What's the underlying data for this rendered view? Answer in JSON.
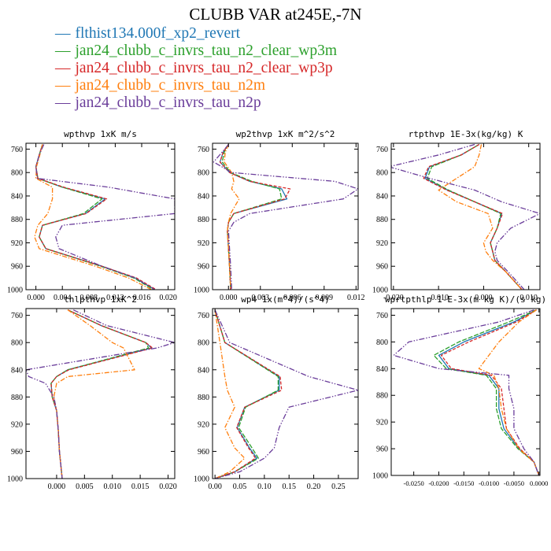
{
  "title": "CLUBB VAR at245E,-7N",
  "colors": {
    "flthist134.000f_xp2_revert": "#1f77b4",
    "jan24_clubb_c_invrs_tau_n2_clear_wp3m": "#2ca02c",
    "jan24_clubb_c_invrs_tau_n2_clear_wp3p": "#d62728",
    "jan24_clubb_c_invrs_tau_n2m": "#ff7f0e",
    "jan24_clubb_c_invrs_tau_n2p": "#6a3d9a"
  },
  "legend": [
    {
      "name": "flthist134.000f_xp2_revert",
      "color": "#1f77b4"
    },
    {
      "name": "jan24_clubb_c_invrs_tau_n2_clear_wp3m",
      "color": "#2ca02c"
    },
    {
      "name": "jan24_clubb_c_invrs_tau_n2_clear_wp3p",
      "color": "#d62728"
    },
    {
      "name": "jan24_clubb_c_invrs_tau_n2m",
      "color": "#ff7f0e"
    },
    {
      "name": "jan24_clubb_c_invrs_tau_n2p",
      "color": "#6a3d9a"
    }
  ],
  "chart_data": [
    {
      "type": "line",
      "title": "wpthvp  1xK m/s",
      "ylim": [
        1000,
        750
      ],
      "yticks": [
        760,
        800,
        840,
        880,
        920,
        960,
        1000
      ],
      "xlim": [
        -0.0015,
        0.021
      ],
      "xticks": [
        0.0,
        0.004,
        0.008,
        0.012,
        0.016,
        0.02
      ],
      "xtick_labels": [
        "0.000",
        "0.004",
        "0.008",
        "0.012",
        "0.016",
        "0.020"
      ],
      "grid": false,
      "levels": [
        752,
        770,
        790,
        810,
        825,
        845,
        870,
        890,
        910,
        930,
        960,
        980,
        1000
      ],
      "series": [
        {
          "name": "flthist134.000f_xp2_revert",
          "values": [
            0.001,
            0.0005,
            0.0,
            0.0003,
            0.004,
            0.0105,
            0.0075,
            0.001,
            0.0005,
            0.0015,
            0.01,
            0.015,
            0.018
          ]
        },
        {
          "name": "jan24_clubb_c_invrs_tau_n2_clear_wp3m",
          "values": [
            0.001,
            0.0005,
            0.0,
            0.0003,
            0.004,
            0.01,
            0.0072,
            0.001,
            0.0005,
            0.0015,
            0.0098,
            0.0148,
            0.0178
          ]
        },
        {
          "name": "jan24_clubb_c_invrs_tau_n2_clear_wp3p",
          "values": [
            0.001,
            0.0005,
            0.0,
            0.0003,
            0.0042,
            0.0107,
            0.0076,
            0.001,
            0.0005,
            0.0015,
            0.01,
            0.0152,
            0.0182
          ]
        },
        {
          "name": "jan24_clubb_c_invrs_tau_n2m",
          "values": [
            0.001,
            0.0006,
            0.0001,
            0.0,
            0.0025,
            0.0025,
            0.0018,
            0.0003,
            -0.0002,
            0.0005,
            0.009,
            0.014,
            0.0175
          ]
        },
        {
          "name": "jan24_clubb_c_invrs_tau_n2p",
          "values": [
            0.0012,
            0.0005,
            0.0,
            0.0002,
            0.011,
            0.021,
            0.021,
            0.004,
            0.003,
            0.0035,
            0.01,
            0.015,
            0.018
          ]
        }
      ]
    },
    {
      "type": "line",
      "title": "wp2thvp  1xK m^2/s^2",
      "ylim": [
        1000,
        750
      ],
      "yticks": [
        760,
        800,
        840,
        880,
        920,
        960,
        1000
      ],
      "xlim": [
        -0.0015,
        0.0122
      ],
      "xticks": [
        0.0,
        0.003,
        0.006,
        0.009,
        0.012
      ],
      "xtick_labels": [
        "0.000",
        "0.003",
        "0.006",
        "0.009",
        "0.012"
      ],
      "grid": false,
      "levels": [
        752,
        765,
        782,
        800,
        815,
        828,
        845,
        870,
        885,
        900,
        930,
        960,
        1000
      ],
      "series": [
        {
          "name": "flthist134.000f_xp2_revert",
          "values": [
            0.0,
            -0.0005,
            -0.0008,
            0.0001,
            0.002,
            0.005,
            0.0055,
            0.0005,
            0.0,
            -0.0001,
            0.0,
            0.0001,
            0.0002
          ]
        },
        {
          "name": "jan24_clubb_c_invrs_tau_n2_clear_wp3m",
          "values": [
            0.0,
            -0.0004,
            -0.0006,
            0.0002,
            0.0022,
            0.0048,
            0.005,
            0.0005,
            0.0,
            -0.0001,
            0.0,
            0.0001,
            0.0002
          ]
        },
        {
          "name": "jan24_clubb_c_invrs_tau_n2_clear_wp3p",
          "values": [
            0.0,
            -0.0005,
            -0.0008,
            0.0001,
            0.002,
            0.0058,
            0.0053,
            0.0005,
            0.0,
            -0.0001,
            0.0,
            0.0001,
            0.0002
          ]
        },
        {
          "name": "jan24_clubb_c_invrs_tau_n2m",
          "values": [
            0.0,
            -0.0003,
            -0.0004,
            0.0003,
            0.0005,
            0.0003,
            0.001,
            0.0002,
            0.0,
            -0.0001,
            0.0,
            0.0001,
            0.0002
          ]
        },
        {
          "name": "jan24_clubb_c_invrs_tau_n2p",
          "values": [
            0.0,
            -0.0006,
            -0.0014,
            0.0003,
            0.01,
            0.0122,
            0.0108,
            0.002,
            0.0005,
            0.0,
            0.0001,
            0.0002,
            0.0003
          ]
        }
      ]
    },
    {
      "type": "line",
      "title": "rtpthvp  1E-3x(kg/kg) K",
      "ylim": [
        1000,
        750
      ],
      "yticks": [
        760,
        800,
        840,
        880,
        920,
        960,
        1000
      ],
      "xlim": [
        -0.0205,
        0.0125
      ],
      "xticks": [
        -0.02,
        -0.01,
        0.0,
        0.01
      ],
      "xtick_labels": [
        "-0.020",
        "-0.010",
        "0.000",
        "0.010"
      ],
      "grid": false,
      "levels": [
        752,
        770,
        790,
        810,
        830,
        850,
        870,
        895,
        920,
        935,
        950,
        970,
        1000
      ],
      "series": [
        {
          "name": "flthist134.000f_xp2_revert",
          "values": [
            -0.001,
            -0.005,
            -0.012,
            -0.013,
            -0.008,
            -0.002,
            0.004,
            0.003,
            0.0015,
            0.002,
            0.0025,
            0.005,
            0.0085
          ]
        },
        {
          "name": "jan24_clubb_c_invrs_tau_n2_clear_wp3m",
          "values": [
            -0.001,
            -0.005,
            -0.0115,
            -0.0125,
            -0.0078,
            -0.002,
            0.0038,
            0.003,
            0.0015,
            0.002,
            0.0025,
            0.005,
            0.0085
          ]
        },
        {
          "name": "jan24_clubb_c_invrs_tau_n2_clear_wp3p",
          "values": [
            -0.001,
            -0.005,
            -0.0122,
            -0.0133,
            -0.0082,
            -0.002,
            0.0042,
            0.003,
            0.0015,
            0.002,
            0.0025,
            0.005,
            0.0085
          ]
        },
        {
          "name": "jan24_clubb_c_invrs_tau_n2m",
          "values": [
            -0.0005,
            -0.001,
            -0.002,
            -0.006,
            -0.01,
            -0.006,
            0.001,
            0.002,
            0.0,
            0.0005,
            0.002,
            0.005,
            0.0085
          ]
        },
        {
          "name": "jan24_clubb_c_invrs_tau_n2p",
          "values": [
            -0.002,
            -0.01,
            -0.021,
            -0.012,
            -0.002,
            0.004,
            0.0125,
            0.006,
            0.003,
            0.0025,
            0.003,
            0.0055,
            0.009
          ]
        }
      ]
    },
    {
      "type": "line",
      "title": "thlpthvp  1xK^2",
      "ylim": [
        1000,
        750
      ],
      "yticks": [
        760,
        800,
        840,
        880,
        920,
        960,
        1000
      ],
      "xlim": [
        -0.0055,
        0.0212
      ],
      "xticks": [
        0.0,
        0.005,
        0.01,
        0.015,
        0.02
      ],
      "xtick_labels": [
        "0.000",
        "0.005",
        "0.010",
        "0.015",
        "0.020"
      ],
      "grid": false,
      "levels": [
        752,
        775,
        800,
        808,
        840,
        850,
        860,
        880,
        900,
        930,
        960,
        1000
      ],
      "series": [
        {
          "name": "flthist134.000f_xp2_revert",
          "values": [
            0.002,
            0.008,
            0.016,
            0.017,
            0.002,
            0.0,
            -0.001,
            -0.0008,
            0.0,
            0.0003,
            0.0005,
            0.001
          ]
        },
        {
          "name": "jan24_clubb_c_invrs_tau_n2_clear_wp3m",
          "values": [
            0.002,
            0.008,
            0.016,
            0.0165,
            0.002,
            0.0,
            -0.001,
            -0.0008,
            0.0,
            0.0003,
            0.0005,
            0.001
          ]
        },
        {
          "name": "jan24_clubb_c_invrs_tau_n2_clear_wp3p",
          "values": [
            0.002,
            0.008,
            0.016,
            0.0172,
            0.0022,
            0.0,
            -0.001,
            -0.0008,
            0.0,
            0.0003,
            0.0005,
            0.001
          ]
        },
        {
          "name": "jan24_clubb_c_invrs_tau_n2m",
          "values": [
            0.002,
            0.006,
            0.01,
            0.012,
            0.014,
            0.002,
            0.0,
            -0.0005,
            0.0,
            0.0003,
            0.0005,
            0.001
          ]
        },
        {
          "name": "jan24_clubb_c_invrs_tau_n2p",
          "values": [
            0.003,
            0.009,
            0.0212,
            0.018,
            -0.0055,
            -0.005,
            -0.002,
            -0.0005,
            0.0,
            0.0003,
            0.0005,
            0.001
          ]
        }
      ]
    },
    {
      "type": "line",
      "title": "wp4  1x(m^4)/(s^4)",
      "ylim": [
        1000,
        750
      ],
      "yticks": [
        760,
        800,
        840,
        880,
        920,
        960,
        1000
      ],
      "xlim": [
        -0.005,
        0.29
      ],
      "xticks": [
        0.0,
        0.05,
        0.1,
        0.15,
        0.2,
        0.25
      ],
      "xtick_labels": [
        "0.00",
        "0.05",
        "0.10",
        "0.15",
        "0.20",
        "0.25"
      ],
      "grid": false,
      "levels": [
        752,
        800,
        850,
        870,
        895,
        925,
        955,
        970,
        990,
        1000
      ],
      "series": [
        {
          "name": "flthist134.000f_xp2_revert",
          "values": [
            0.0,
            0.02,
            0.13,
            0.13,
            0.06,
            0.045,
            0.07,
            0.085,
            0.04,
            0.0
          ]
        },
        {
          "name": "jan24_clubb_c_invrs_tau_n2_clear_wp3m",
          "values": [
            0.0,
            0.02,
            0.128,
            0.128,
            0.062,
            0.048,
            0.075,
            0.088,
            0.04,
            0.0
          ]
        },
        {
          "name": "jan24_clubb_c_invrs_tau_n2_clear_wp3p",
          "values": [
            0.0,
            0.02,
            0.132,
            0.135,
            0.06,
            0.044,
            0.068,
            0.082,
            0.04,
            0.0
          ]
        },
        {
          "name": "jan24_clubb_c_invrs_tau_n2m",
          "values": [
            0.0,
            0.01,
            0.02,
            0.025,
            0.04,
            0.02,
            0.04,
            0.06,
            0.03,
            0.0
          ]
        },
        {
          "name": "jan24_clubb_c_invrs_tau_n2p",
          "values": [
            0.0,
            0.03,
            0.19,
            0.29,
            0.15,
            0.13,
            0.12,
            0.1,
            0.05,
            0.0
          ]
        }
      ]
    },
    {
      "type": "line",
      "title": "wprtpthlp  1-E-3x(m kg K)/(s kg)",
      "ylim": [
        1000,
        750
      ],
      "yticks": [
        760,
        800,
        840,
        880,
        920,
        960,
        1000
      ],
      "xlim": [
        -0.0295,
        0.0002
      ],
      "xticks": [
        -0.025,
        -0.02,
        -0.015,
        -0.01,
        -0.005,
        0.0
      ],
      "xtick_labels": [
        "-0.0250",
        "-0.0200",
        "-0.0150",
        "-0.0100",
        "-0.0050",
        "0.0000"
      ],
      "grid": false,
      "levels": [
        752,
        770,
        800,
        820,
        840,
        850,
        870,
        900,
        930,
        960,
        980,
        1000
      ],
      "series": [
        {
          "name": "flthist134.000f_xp2_revert",
          "values": [
            -0.0005,
            -0.005,
            -0.015,
            -0.02,
            -0.018,
            -0.01,
            -0.008,
            -0.008,
            -0.007,
            -0.004,
            -0.001,
            0.0
          ]
        },
        {
          "name": "jan24_clubb_c_invrs_tau_n2_clear_wp3m",
          "values": [
            -0.0005,
            -0.006,
            -0.016,
            -0.021,
            -0.0185,
            -0.0105,
            -0.0085,
            -0.0085,
            -0.0075,
            -0.0042,
            -0.001,
            0.0
          ]
        },
        {
          "name": "jan24_clubb_c_invrs_tau_n2_clear_wp3p",
          "values": [
            -0.0005,
            -0.0045,
            -0.014,
            -0.0195,
            -0.0175,
            -0.0095,
            -0.0075,
            -0.007,
            -0.0065,
            -0.0038,
            -0.001,
            0.0
          ]
        },
        {
          "name": "jan24_clubb_c_invrs_tau_n2m",
          "values": [
            -0.0005,
            -0.004,
            -0.008,
            -0.01,
            -0.012,
            -0.009,
            -0.008,
            -0.0075,
            -0.0065,
            -0.004,
            -0.001,
            0.0
          ]
        },
        {
          "name": "jan24_clubb_c_invrs_tau_n2p",
          "values": [
            -0.001,
            -0.008,
            -0.026,
            -0.029,
            -0.02,
            -0.006,
            -0.006,
            -0.005,
            -0.005,
            -0.003,
            -0.001,
            0.0
          ]
        }
      ]
    }
  ]
}
